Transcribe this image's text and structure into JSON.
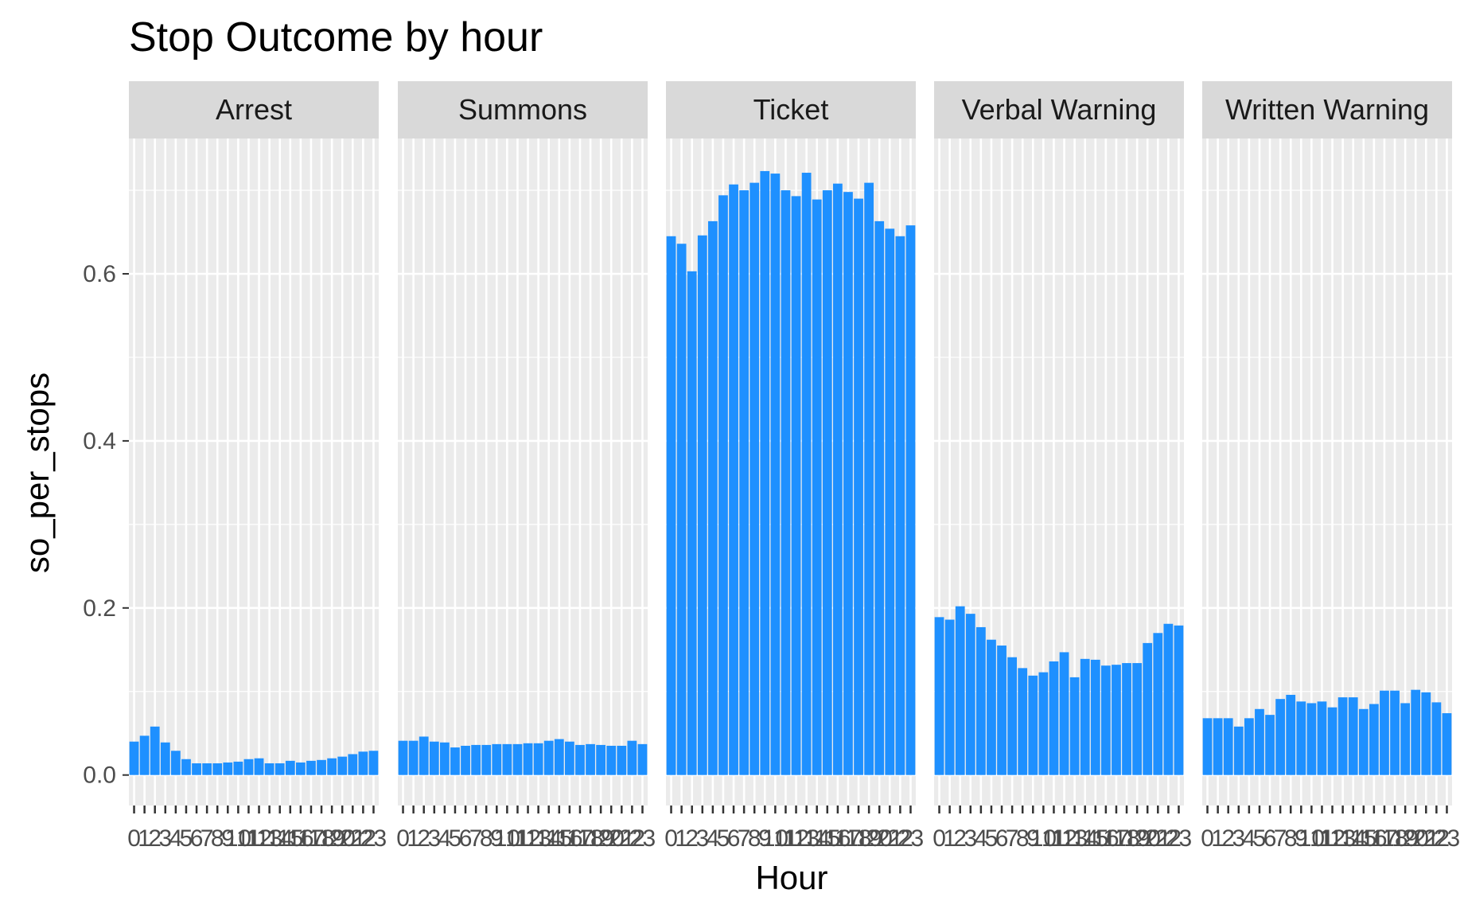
{
  "chart_data": {
    "type": "bar",
    "title": "Stop Outcome by hour",
    "xlabel": "Hour",
    "ylabel": "so_per_stops",
    "ylim": [
      -0.0365,
      0.762
    ],
    "yticks": [
      0.0,
      0.2,
      0.4,
      0.6
    ],
    "ytick_labels": [
      "0.0",
      "0.2",
      "0.4",
      "0.6"
    ],
    "categories": [
      "0",
      "1",
      "2",
      "3",
      "4",
      "5",
      "6",
      "7",
      "8",
      "9",
      "10",
      "11",
      "12",
      "13",
      "14",
      "15",
      "16",
      "17",
      "18",
      "19",
      "20",
      "21",
      "22",
      "23"
    ],
    "bar_color": "#1E90FF",
    "panel_background": "#EBEBEB",
    "strip_background": "#D9D9D9",
    "grid": true,
    "legend": "none",
    "facets": [
      {
        "name": "Arrest",
        "values": [
          0.04,
          0.047,
          0.058,
          0.039,
          0.029,
          0.019,
          0.014,
          0.014,
          0.014,
          0.015,
          0.016,
          0.019,
          0.02,
          0.014,
          0.014,
          0.017,
          0.015,
          0.017,
          0.018,
          0.02,
          0.022,
          0.025,
          0.028,
          0.029
        ]
      },
      {
        "name": "Summons",
        "values": [
          0.041,
          0.041,
          0.046,
          0.04,
          0.039,
          0.033,
          0.035,
          0.036,
          0.036,
          0.037,
          0.037,
          0.037,
          0.038,
          0.038,
          0.041,
          0.043,
          0.04,
          0.036,
          0.037,
          0.036,
          0.035,
          0.035,
          0.041,
          0.037
        ]
      },
      {
        "name": "Ticket",
        "values": [
          0.645,
          0.636,
          0.603,
          0.646,
          0.663,
          0.694,
          0.707,
          0.7,
          0.709,
          0.723,
          0.72,
          0.7,
          0.693,
          0.721,
          0.689,
          0.7,
          0.708,
          0.698,
          0.69,
          0.709,
          0.663,
          0.654,
          0.645,
          0.658
        ]
      },
      {
        "name": "Verbal Warning",
        "values": [
          0.189,
          0.186,
          0.202,
          0.193,
          0.177,
          0.162,
          0.155,
          0.141,
          0.128,
          0.119,
          0.123,
          0.136,
          0.147,
          0.117,
          0.139,
          0.138,
          0.131,
          0.132,
          0.134,
          0.134,
          0.158,
          0.17,
          0.181,
          0.179
        ]
      },
      {
        "name": "Written Warning",
        "values": [
          0.068,
          0.068,
          0.068,
          0.058,
          0.068,
          0.079,
          0.072,
          0.091,
          0.096,
          0.088,
          0.086,
          0.088,
          0.081,
          0.093,
          0.093,
          0.079,
          0.085,
          0.101,
          0.101,
          0.086,
          0.102,
          0.099,
          0.087,
          0.074
        ]
      }
    ]
  }
}
